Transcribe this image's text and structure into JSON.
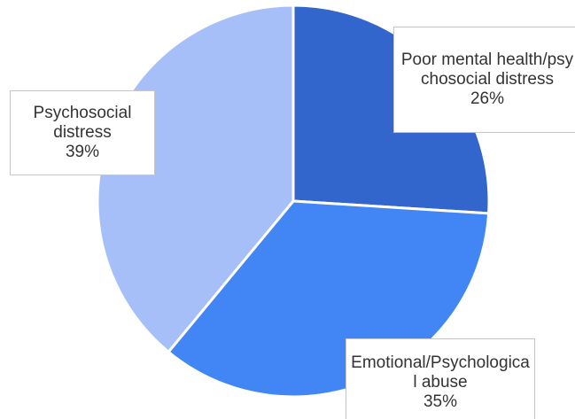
{
  "chart_data": {
    "type": "pie",
    "slices": [
      {
        "label": "Poor mental health/psychosocial distress",
        "value": 26,
        "value_label": "26%",
        "color": "#3366cc"
      },
      {
        "label": "Emotional/Psychological abuse",
        "value": 35,
        "value_label": "35%",
        "color": "#4285f4"
      },
      {
        "label": "Psychosocial distress",
        "value": 39,
        "value_label": "39%",
        "color": "#a7bff9"
      }
    ],
    "start_angle": "12 o'clock",
    "direction": "clockwise",
    "labels": "boxed callouts with percentage",
    "legend": "none"
  }
}
